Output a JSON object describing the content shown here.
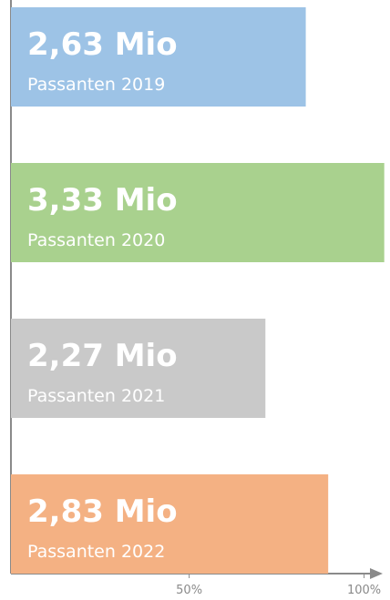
{
  "chart_data": {
    "type": "barh",
    "categories": [
      "Passanten 2019",
      "Passanten 2020",
      "Passanten 2021",
      "Passanten 2022"
    ],
    "values": [
      2.63,
      3.33,
      2.27,
      2.83
    ],
    "value_labels": [
      "2,63 Mio",
      "3,33 Mio",
      "2,27 Mio",
      "2,83 Mio"
    ],
    "colors": [
      "#9dc3e6",
      "#a9d18e",
      "#c9c9c9",
      "#f4b183"
    ],
    "xlim": [
      0,
      3.3
    ],
    "xticks": [
      {
        "value": 1.59,
        "label": "50%"
      },
      {
        "value": 3.15,
        "label": "100%"
      }
    ]
  }
}
